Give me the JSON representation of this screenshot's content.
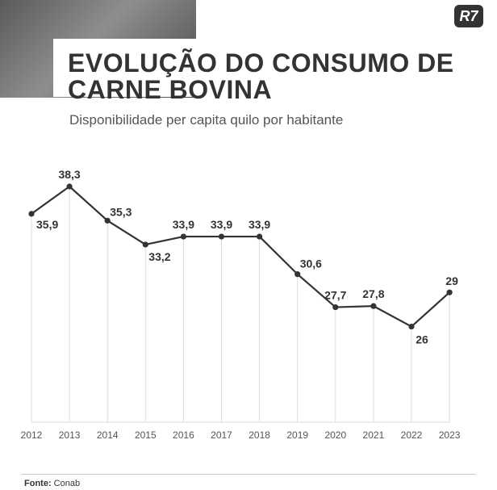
{
  "header": {
    "title": "EVOLUÇÃO DO CONSUMO DE CARNE BOVINA",
    "subtitle": "Disponibilidade per capita quilo por habitante",
    "logo": "R7"
  },
  "footer": {
    "source_label": "Fonte:",
    "source_value": "Conab"
  },
  "colors": {
    "line": "#333333",
    "grid": "#dddddd",
    "text": "#333333"
  },
  "chart_data": {
    "type": "line",
    "title": "EVOLUÇÃO DO CONSUMO DE CARNE BOVINA",
    "subtitle": "Disponibilidade per capita quilo por habitante",
    "categories": [
      "2012",
      "2013",
      "2014",
      "2015",
      "2016",
      "2017",
      "2018",
      "2019",
      "2020",
      "2021",
      "2022",
      "2023"
    ],
    "values": [
      35.9,
      38.3,
      35.3,
      33.2,
      33.9,
      33.9,
      33.9,
      30.6,
      27.7,
      27.8,
      26,
      29
    ],
    "labels": [
      "35,9",
      "38,3",
      "35,3",
      "33,2",
      "33,9",
      "33,9",
      "33,9",
      "30,6",
      "27,7",
      "27,8",
      "26",
      "29"
    ],
    "grid": "vertical",
    "legend": "none"
  }
}
